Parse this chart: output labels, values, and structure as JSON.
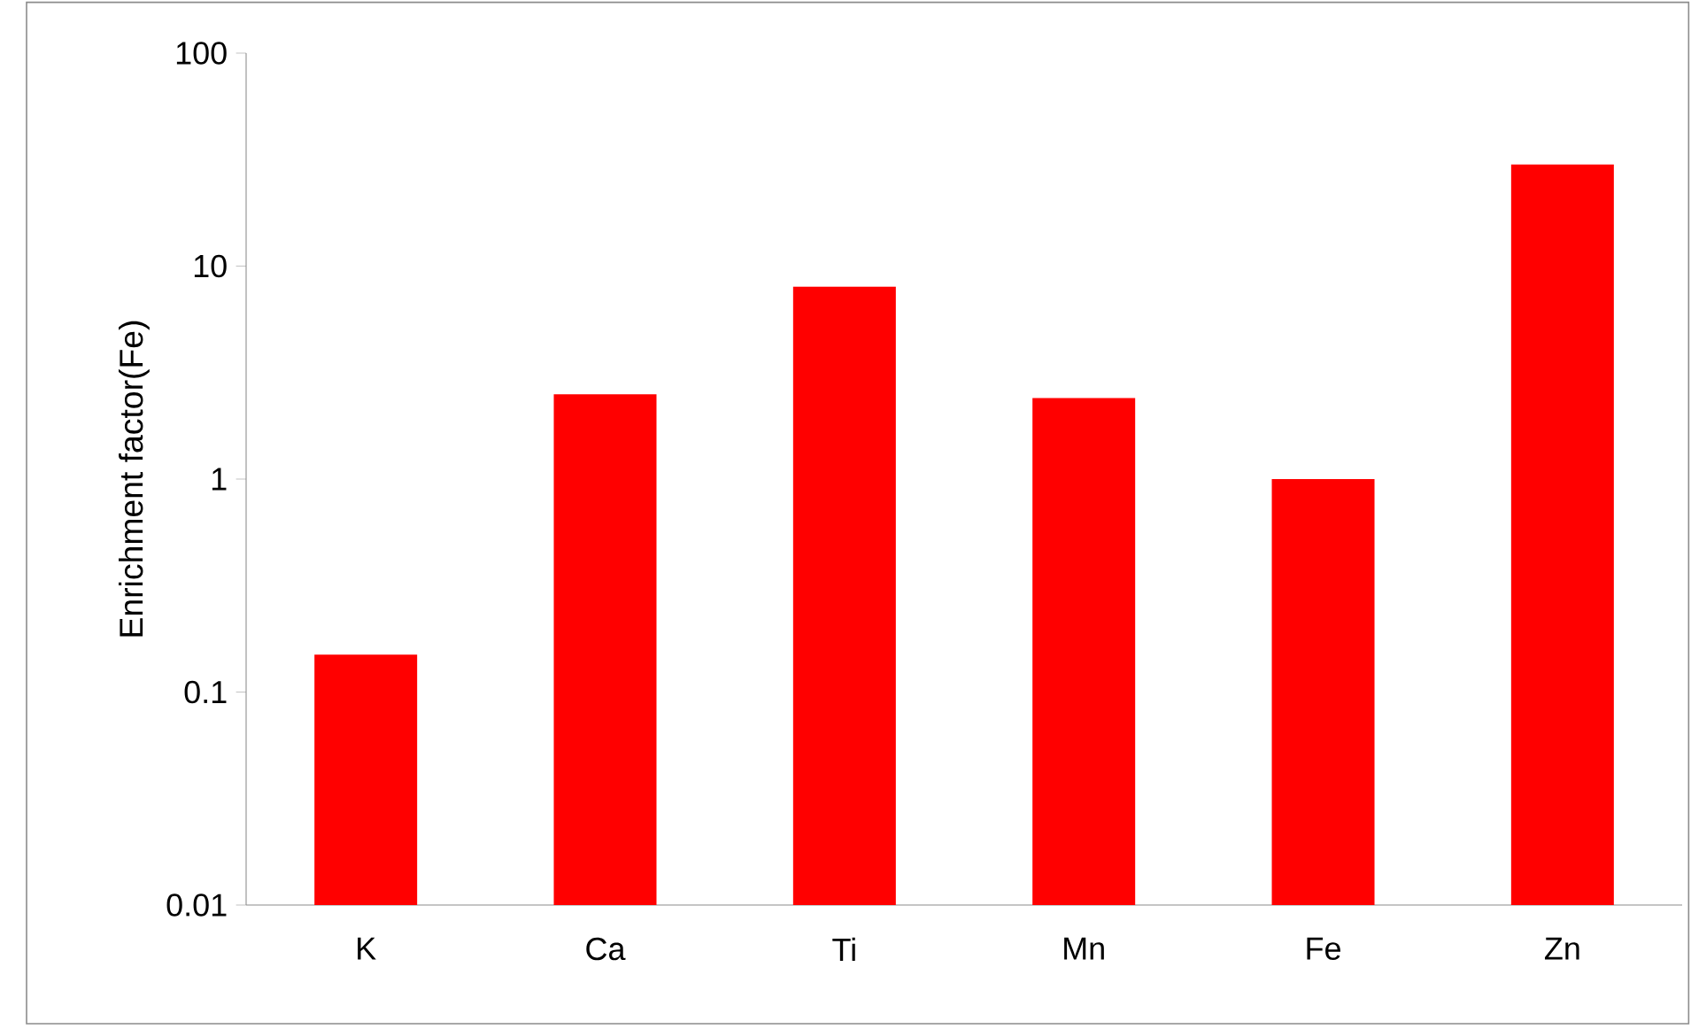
{
  "chart_data": {
    "type": "bar",
    "ylabel": "Enrichment factor(Fe)",
    "categories": [
      "K",
      "Ca",
      "Ti",
      "Mn",
      "Fe",
      "Zn"
    ],
    "values": [
      0.15,
      2.5,
      8,
      2.4,
      1,
      30
    ],
    "color": "#ff0000",
    "log": true,
    "ylim": [
      0.01,
      100
    ],
    "yticks": [
      0.01,
      0.1,
      1,
      10,
      100
    ],
    "grid": false
  }
}
